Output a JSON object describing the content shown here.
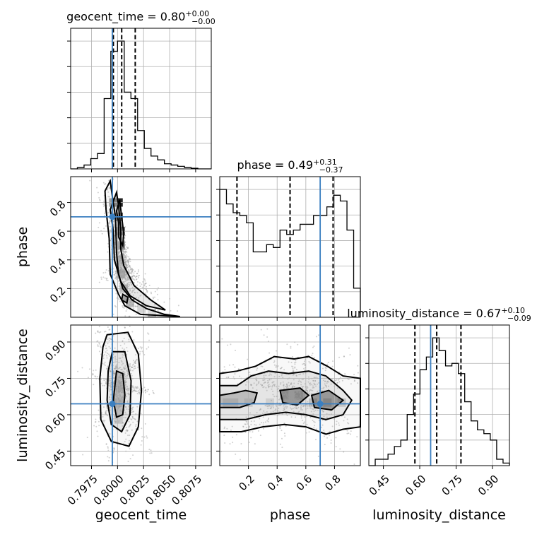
{
  "chart_data": {
    "type": "corner",
    "parameters": [
      {
        "name": "geocent_time",
        "title": "geocent_time = 0.80",
        "sup": "+0.00",
        "sub": "−0.00",
        "range": [
          0.7955,
          0.809
        ],
        "ticks": [
          0.7975,
          0.8,
          0.8025,
          0.805,
          0.8075
        ],
        "tick_labels": [
          "0.7975",
          "0.8000",
          "0.8025",
          "0.8050",
          "0.8075"
        ],
        "truth": 0.7995,
        "quantiles": [
          0.7996,
          0.8004,
          0.8017
        ]
      },
      {
        "name": "phase",
        "title": "phase = 0.49",
        "sup": "+0.31",
        "sub": "−0.37",
        "range": [
          0.0,
          0.98
        ],
        "ticks": [
          0.2,
          0.4,
          0.6,
          0.8
        ],
        "tick_labels": [
          "0.2",
          "0.4",
          "0.6",
          "0.8"
        ],
        "truth": 0.7,
        "quantiles": [
          0.12,
          0.49,
          0.79
        ]
      },
      {
        "name": "luminosity_distance",
        "title": "luminosity_distance = 0.67",
        "sup": "+0.10",
        "sub": "−0.09",
        "range": [
          0.39,
          0.97
        ],
        "ticks": [
          0.45,
          0.6,
          0.75,
          0.9
        ],
        "tick_labels": [
          "0.45",
          "0.60",
          "0.75",
          "0.90"
        ],
        "truth": 0.645,
        "quantiles": [
          0.58,
          0.67,
          0.77
        ]
      }
    ],
    "histograms": {
      "geocent_time": {
        "bin_range": [
          0.7955,
          0.809
        ],
        "counts": [
          0,
          0.01,
          0.03,
          0.08,
          0.12,
          0.55,
          0.92,
          1.0,
          0.6,
          0.55,
          0.3,
          0.16,
          0.1,
          0.07,
          0.04,
          0.03,
          0.02,
          0.01,
          0.005,
          0,
          0
        ]
      },
      "phase": {
        "bin_range": [
          0.0,
          0.98
        ],
        "counts": [
          0.88,
          0.78,
          0.72,
          0.7,
          0.65,
          0.45,
          0.45,
          0.5,
          0.48,
          0.6,
          0.57,
          0.6,
          0.64,
          0.64,
          0.7,
          0.7,
          0.76,
          0.84,
          0.8,
          0.6,
          0.2
        ]
      },
      "luminosity_distance": {
        "bin_range": [
          0.39,
          0.97
        ],
        "counts": [
          0,
          0.05,
          0.05,
          0.09,
          0.15,
          0.2,
          0.4,
          0.56,
          0.75,
          0.85,
          1.0,
          0.9,
          0.78,
          0.8,
          0.72,
          0.5,
          0.35,
          0.28,
          0.25,
          0.2,
          0.05,
          0.02
        ]
      }
    },
    "panels_2d": [
      {
        "x": "geocent_time",
        "y": "phase",
        "contours": [
          [
            [
              0.7993,
              0.95
            ],
            [
              0.7995,
              0.84
            ],
            [
              0.7998,
              0.7
            ],
            [
              0.7999,
              0.45
            ],
            [
              0.8001,
              0.3
            ],
            [
              0.8005,
              0.2
            ],
            [
              0.8014,
              0.12
            ],
            [
              0.8028,
              0.06
            ],
            [
              0.8045,
              0.02
            ],
            [
              0.806,
              0.005
            ],
            [
              0.8022,
              0.02
            ],
            [
              0.8007,
              0.08
            ],
            [
              0.8001,
              0.16
            ],
            [
              0.7993,
              0.3
            ],
            [
              0.7992,
              0.55
            ],
            [
              0.7989,
              0.75
            ],
            [
              0.7988,
              0.88
            ]
          ],
          [
            [
              0.7999,
              0.87
            ],
            [
              0.8001,
              0.78
            ],
            [
              0.8003,
              0.62
            ],
            [
              0.8003,
              0.48
            ],
            [
              0.8006,
              0.36
            ],
            [
              0.8016,
              0.22
            ],
            [
              0.8032,
              0.12
            ],
            [
              0.8046,
              0.05
            ],
            [
              0.8028,
              0.08
            ],
            [
              0.8012,
              0.15
            ],
            [
              0.8003,
              0.25
            ],
            [
              0.7997,
              0.4
            ],
            [
              0.7996,
              0.6
            ],
            [
              0.7993,
              0.75
            ]
          ],
          [
            [
              0.8002,
              0.82
            ],
            [
              0.8004,
              0.7
            ],
            [
              0.8006,
              0.58
            ],
            [
              0.8005,
              0.5
            ],
            [
              0.8001,
              0.56
            ],
            [
              0.8001,
              0.66
            ],
            [
              0.7999,
              0.74
            ]
          ],
          [
            [
              0.8005,
              0.16
            ],
            [
              0.801,
              0.14
            ],
            [
              0.8009,
              0.1
            ],
            [
              0.8004,
              0.12
            ]
          ]
        ],
        "density": [
          [
            0.7996,
            0.8,
            0.9
          ],
          [
            0.8001,
            0.8,
            1.0
          ],
          [
            0.8001,
            0.7,
            0.9
          ],
          [
            0.8003,
            0.6,
            0.8
          ],
          [
            0.8003,
            0.5,
            0.6
          ],
          [
            0.8001,
            0.4,
            0.5
          ],
          [
            0.8003,
            0.3,
            0.6
          ],
          [
            0.8006,
            0.2,
            0.5
          ],
          [
            0.8012,
            0.1,
            0.6
          ],
          [
            0.8023,
            0.06,
            0.3
          ],
          [
            0.8033,
            0.03,
            0.2
          ]
        ]
      },
      {
        "x": "geocent_time",
        "y": "luminosity_distance",
        "contours": [
          [
            [
              0.799,
              0.93
            ],
            [
              0.801,
              0.94
            ],
            [
              0.802,
              0.85
            ],
            [
              0.8023,
              0.7
            ],
            [
              0.802,
              0.55
            ],
            [
              0.8011,
              0.47
            ],
            [
              0.7994,
              0.49
            ],
            [
              0.7984,
              0.58
            ],
            [
              0.7983,
              0.75
            ],
            [
              0.7986,
              0.88
            ]
          ],
          [
            [
              0.7995,
              0.86
            ],
            [
              0.8007,
              0.86
            ],
            [
              0.8013,
              0.74
            ],
            [
              0.8012,
              0.6
            ],
            [
              0.8004,
              0.53
            ],
            [
              0.7994,
              0.56
            ],
            [
              0.799,
              0.66
            ],
            [
              0.7991,
              0.78
            ]
          ],
          [
            [
              0.7999,
              0.78
            ],
            [
              0.8005,
              0.77
            ],
            [
              0.8007,
              0.68
            ],
            [
              0.8005,
              0.6
            ],
            [
              0.7999,
              0.59
            ],
            [
              0.7996,
              0.66
            ]
          ]
        ],
        "density": [
          [
            0.8001,
            0.72,
            0.7
          ],
          [
            0.8001,
            0.65,
            1.0
          ],
          [
            0.8003,
            0.65,
            0.8
          ],
          [
            0.8001,
            0.58,
            0.6
          ],
          [
            0.7999,
            0.72,
            0.5
          ],
          [
            0.8004,
            0.72,
            0.5
          ]
        ]
      },
      {
        "x": "phase",
        "y": "luminosity_distance",
        "contours": [
          [
            [
              0.0,
              0.77
            ],
            [
              0.12,
              0.78
            ],
            [
              0.25,
              0.8
            ],
            [
              0.38,
              0.84
            ],
            [
              0.52,
              0.83
            ],
            [
              0.62,
              0.84
            ],
            [
              0.75,
              0.8
            ],
            [
              0.86,
              0.76
            ],
            [
              0.98,
              0.75
            ],
            [
              0.98,
              0.55
            ],
            [
              0.86,
              0.54
            ],
            [
              0.74,
              0.52
            ],
            [
              0.6,
              0.55
            ],
            [
              0.45,
              0.56
            ],
            [
              0.3,
              0.55
            ],
            [
              0.15,
              0.53
            ],
            [
              0.0,
              0.53
            ]
          ],
          [
            [
              0.0,
              0.72
            ],
            [
              0.12,
              0.72
            ],
            [
              0.22,
              0.76
            ],
            [
              0.34,
              0.78
            ],
            [
              0.48,
              0.77
            ],
            [
              0.62,
              0.78
            ],
            [
              0.74,
              0.76
            ],
            [
              0.86,
              0.7
            ],
            [
              0.92,
              0.66
            ],
            [
              0.86,
              0.6
            ],
            [
              0.74,
              0.58
            ],
            [
              0.6,
              0.6
            ],
            [
              0.46,
              0.61
            ],
            [
              0.32,
              0.6
            ],
            [
              0.18,
              0.58
            ],
            [
              0.0,
              0.58
            ]
          ],
          [
            [
              0.0,
              0.68
            ],
            [
              0.1,
              0.69
            ],
            [
              0.18,
              0.7
            ],
            [
              0.26,
              0.69
            ],
            [
              0.24,
              0.65
            ],
            [
              0.14,
              0.63
            ],
            [
              0.0,
              0.63
            ]
          ],
          [
            [
              0.42,
              0.7
            ],
            [
              0.56,
              0.71
            ],
            [
              0.62,
              0.68
            ],
            [
              0.54,
              0.64
            ],
            [
              0.44,
              0.65
            ]
          ],
          [
            [
              0.64,
              0.68
            ],
            [
              0.76,
              0.7
            ],
            [
              0.86,
              0.66
            ],
            [
              0.78,
              0.62
            ],
            [
              0.66,
              0.63
            ]
          ]
        ],
        "density": [
          [
            0.05,
            0.65,
            0.9
          ],
          [
            0.1,
            0.65,
            0.8
          ],
          [
            0.2,
            0.65,
            0.6
          ],
          [
            0.45,
            0.68,
            0.7
          ],
          [
            0.55,
            0.68,
            0.9
          ],
          [
            0.65,
            0.65,
            0.8
          ],
          [
            0.75,
            0.65,
            1.0
          ],
          [
            0.85,
            0.65,
            0.7
          ],
          [
            0.35,
            0.65,
            0.4
          ]
        ]
      }
    ]
  }
}
